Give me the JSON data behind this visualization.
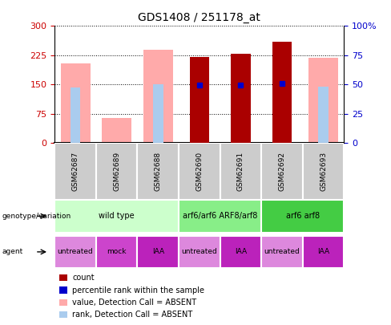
{
  "title": "GDS1408 / 251178_at",
  "samples": [
    "GSM62687",
    "GSM62689",
    "GSM62688",
    "GSM62690",
    "GSM62691",
    "GSM62692",
    "GSM62693"
  ],
  "count_values": [
    null,
    null,
    null,
    220,
    228,
    260,
    null
  ],
  "rank_values": [
    null,
    null,
    null,
    148,
    148,
    152,
    null
  ],
  "absent_value": [
    205,
    65,
    240,
    null,
    null,
    null,
    218
  ],
  "absent_rank": [
    143,
    null,
    150,
    null,
    null,
    null,
    145
  ],
  "ylim_left": [
    0,
    300
  ],
  "ylim_right": [
    0,
    100
  ],
  "yticks_left": [
    0,
    75,
    150,
    225,
    300
  ],
  "yticks_right": [
    0,
    25,
    50,
    75,
    100
  ],
  "ytick_labels_left": [
    "0",
    "75",
    "150",
    "225",
    "300"
  ],
  "ytick_labels_right": [
    "0",
    "25",
    "50",
    "75",
    "100%"
  ],
  "count_color": "#aa0000",
  "rank_color": "#0000cc",
  "absent_value_color": "#ffaaaa",
  "absent_rank_color": "#aaccee",
  "genotype_groups": [
    {
      "label": "wild type",
      "start": 0,
      "end": 3,
      "color": "#ccffcc"
    },
    {
      "label": "arf6/arf6 ARF8/arf8",
      "start": 3,
      "end": 5,
      "color": "#88ee88"
    },
    {
      "label": "arf6 arf8",
      "start": 5,
      "end": 7,
      "color": "#44cc44"
    }
  ],
  "agent_groups": [
    {
      "label": "untreated",
      "start": 0,
      "end": 1,
      "color": "#dd88dd"
    },
    {
      "label": "mock",
      "start": 1,
      "end": 2,
      "color": "#cc44cc"
    },
    {
      "label": "IAA",
      "start": 2,
      "end": 3,
      "color": "#bb22bb"
    },
    {
      "label": "untreated",
      "start": 3,
      "end": 4,
      "color": "#dd88dd"
    },
    {
      "label": "IAA",
      "start": 4,
      "end": 5,
      "color": "#bb22bb"
    },
    {
      "label": "untreated",
      "start": 5,
      "end": 6,
      "color": "#dd88dd"
    },
    {
      "label": "IAA",
      "start": 6,
      "end": 7,
      "color": "#bb22bb"
    }
  ],
  "legend_items": [
    {
      "label": "count",
      "color": "#aa0000"
    },
    {
      "label": "percentile rank within the sample",
      "color": "#0000cc"
    },
    {
      "label": "value, Detection Call = ABSENT",
      "color": "#ffaaaa"
    },
    {
      "label": "rank, Detection Call = ABSENT",
      "color": "#aaccee"
    }
  ],
  "left_label_color": "#cc0000",
  "right_label_color": "#0000cc",
  "background_color": "#ffffff",
  "xtick_bg_color": "#cccccc",
  "bar_width": 0.55
}
